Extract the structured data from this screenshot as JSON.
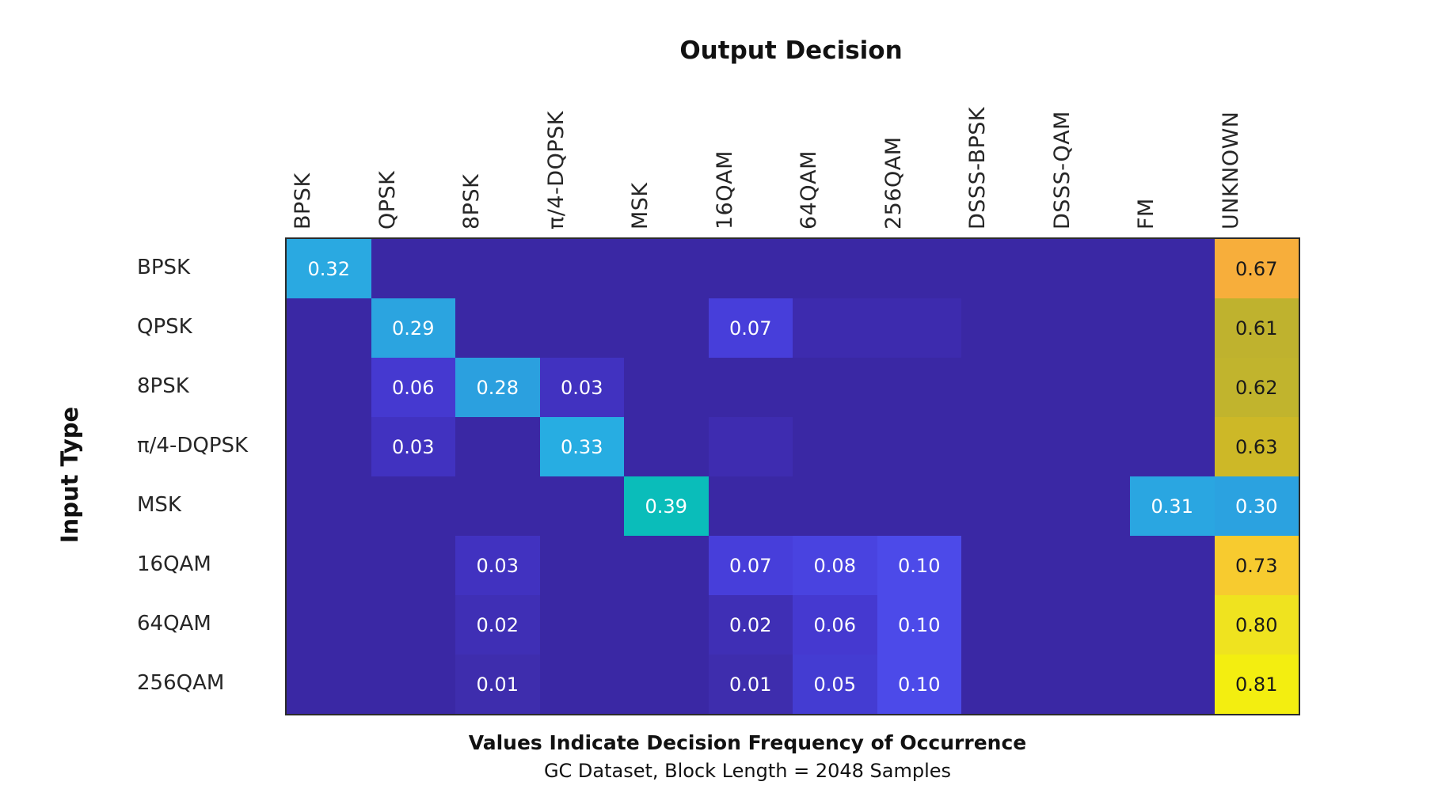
{
  "figure": {
    "title": "Output Decision",
    "ylabel": "Input Type",
    "footer_bold": "Values Indicate Decision Frequency of Occurrence",
    "footer_sub": "GC Dataset, Block Length = 2048 Samples"
  },
  "chart_data": {
    "type": "heatmap",
    "title": "Output Decision",
    "ylabel": "Input Type",
    "caption": "Values Indicate Decision Frequency of Occurrence",
    "subcaption": "GC Dataset, Block Length = 2048 Samples",
    "legend": "none",
    "grid": "off",
    "columns": [
      "BPSK",
      "QPSK",
      "8PSK",
      "π/4-DQPSK",
      "MSK",
      "16QAM",
      "64QAM",
      "256QAM",
      "DSSS-BPSK",
      "DSSS-QAM",
      "FM",
      "UNKNOWN"
    ],
    "rows": [
      "BPSK",
      "QPSK",
      "8PSK",
      "π/4-DQPSK",
      "MSK",
      "16QAM",
      "64QAM",
      "256QAM"
    ],
    "base_color": "#3A28A4",
    "text_dark": "#1a1a1a",
    "text_light": "#ffffff",
    "cells": [
      {
        "row": "BPSK",
        "entries": [
          {
            "col": "BPSK",
            "v": 0.32,
            "bg": "#2AA9E1"
          },
          {
            "col": "UNKNOWN",
            "v": 0.67,
            "bg": "#F7AE3B"
          }
        ]
      },
      {
        "row": "QPSK",
        "entries": [
          {
            "col": "QPSK",
            "v": 0.29,
            "bg": "#2BA4E0"
          },
          {
            "col": "16QAM",
            "v": 0.07,
            "bg": "#473EDA"
          },
          {
            "col": "64QAM",
            "v": null,
            "bg": "#3D2BAE"
          },
          {
            "col": "256QAM",
            "v": null,
            "bg": "#3D2BAE"
          },
          {
            "col": "UNKNOWN",
            "v": 0.61,
            "bg": "#BFB22E"
          }
        ]
      },
      {
        "row": "8PSK",
        "entries": [
          {
            "col": "QPSK",
            "v": 0.06,
            "bg": "#4539D0"
          },
          {
            "col": "8PSK",
            "v": 0.28,
            "bg": "#2BA0DF"
          },
          {
            "col": "π/4-DQPSK",
            "v": 0.03,
            "bg": "#4132C0"
          },
          {
            "col": "UNKNOWN",
            "v": 0.62,
            "bg": "#C1B42D"
          }
        ]
      },
      {
        "row": "π/4-DQPSK",
        "entries": [
          {
            "col": "QPSK",
            "v": 0.03,
            "bg": "#4132C0"
          },
          {
            "col": "π/4-DQPSK",
            "v": 0.33,
            "bg": "#27ADE2"
          },
          {
            "col": "16QAM",
            "v": null,
            "bg": "#3E2CB0"
          },
          {
            "col": "UNKNOWN",
            "v": 0.63,
            "bg": "#CDB827"
          }
        ]
      },
      {
        "row": "MSK",
        "entries": [
          {
            "col": "MSK",
            "v": 0.39,
            "bg": "#0ABDBA"
          },
          {
            "col": "FM",
            "v": 0.31,
            "bg": "#2AA6E1"
          },
          {
            "col": "UNKNOWN",
            "v": 0.3,
            "bg": "#2BA2E0"
          }
        ]
      },
      {
        "row": "16QAM",
        "entries": [
          {
            "col": "8PSK",
            "v": 0.03,
            "bg": "#4132C0"
          },
          {
            "col": "16QAM",
            "v": 0.07,
            "bg": "#473EDA"
          },
          {
            "col": "64QAM",
            "v": 0.08,
            "bg": "#4943E0"
          },
          {
            "col": "256QAM",
            "v": 0.1,
            "bg": "#4C4AE9"
          },
          {
            "col": "UNKNOWN",
            "v": 0.73,
            "bg": "#F7CB2F"
          }
        ]
      },
      {
        "row": "64QAM",
        "entries": [
          {
            "col": "8PSK",
            "v": 0.02,
            "bg": "#3F2FB5"
          },
          {
            "col": "16QAM",
            "v": 0.02,
            "bg": "#3F2FB5"
          },
          {
            "col": "64QAM",
            "v": 0.06,
            "bg": "#4539D0"
          },
          {
            "col": "256QAM",
            "v": 0.1,
            "bg": "#4C4AE9"
          },
          {
            "col": "UNKNOWN",
            "v": 0.8,
            "bg": "#EFE31F"
          }
        ]
      },
      {
        "row": "256QAM",
        "entries": [
          {
            "col": "8PSK",
            "v": 0.01,
            "bg": "#3E2DAD"
          },
          {
            "col": "16QAM",
            "v": 0.01,
            "bg": "#3E2DAD"
          },
          {
            "col": "64QAM",
            "v": 0.05,
            "bg": "#443CD2"
          },
          {
            "col": "256QAM",
            "v": 0.1,
            "bg": "#4C4AE9"
          },
          {
            "col": "UNKNOWN",
            "v": 0.81,
            "bg": "#F3EE10"
          }
        ]
      }
    ]
  }
}
